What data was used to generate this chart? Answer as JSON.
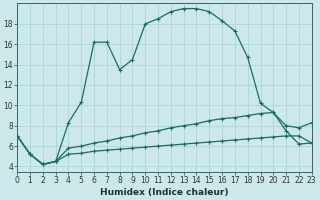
{
  "xlabel": "Humidex (Indice chaleur)",
  "background_color": "#cce8ea",
  "grid_color": "#b0d8dc",
  "line_color": "#1a6b6b",
  "x": [
    0,
    1,
    2,
    3,
    4,
    5,
    6,
    7,
    8,
    9,
    10,
    11,
    12,
    13,
    14,
    15,
    16,
    17,
    18,
    19,
    20,
    21,
    22,
    23
  ],
  "y_main": [
    7.0,
    5.2,
    4.2,
    4.5,
    8.3,
    10.3,
    16.2,
    16.2,
    13.5,
    14.5,
    18.0,
    18.5,
    19.2,
    19.5,
    19.5,
    19.2,
    18.3,
    17.3,
    14.7,
    10.2,
    9.3,
    7.5,
    6.2,
    6.3
  ],
  "y_low": [
    7.0,
    5.2,
    4.2,
    4.5,
    5.2,
    5.3,
    5.5,
    5.6,
    5.7,
    5.8,
    5.9,
    6.0,
    6.1,
    6.2,
    6.3,
    6.4,
    6.5,
    6.6,
    6.7,
    6.8,
    6.9,
    7.0,
    7.0,
    6.3
  ],
  "y_high": [
    7.0,
    5.2,
    4.2,
    4.5,
    5.8,
    6.0,
    6.3,
    6.5,
    6.8,
    7.0,
    7.3,
    7.5,
    7.8,
    8.0,
    8.2,
    8.5,
    8.7,
    8.8,
    9.0,
    9.2,
    9.3,
    8.0,
    7.8,
    8.3
  ],
  "xlim": [
    0,
    23
  ],
  "ylim": [
    3.5,
    20
  ],
  "yticks": [
    4,
    6,
    8,
    10,
    12,
    14,
    16,
    18
  ],
  "xticks": [
    0,
    1,
    2,
    3,
    4,
    5,
    6,
    7,
    8,
    9,
    10,
    11,
    12,
    13,
    14,
    15,
    16,
    17,
    18,
    19,
    20,
    21,
    22,
    23
  ]
}
